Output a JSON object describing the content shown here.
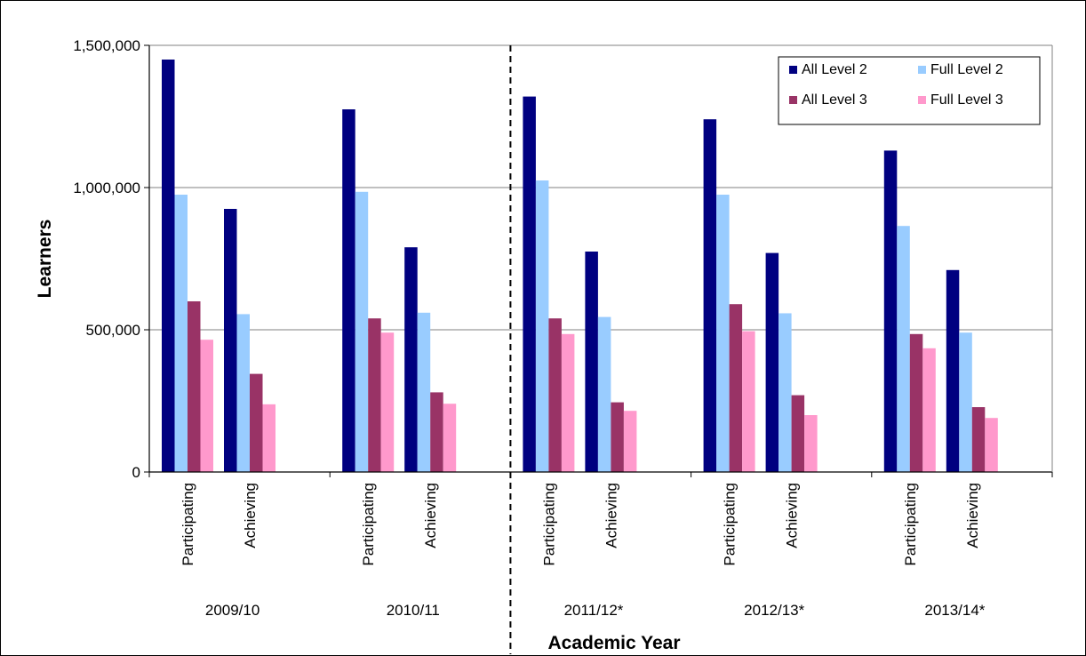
{
  "chart_data": {
    "type": "bar",
    "title": "",
    "xlabel": "Academic Year",
    "ylabel": "Learners",
    "ylim": [
      0,
      1500000
    ],
    "yticks": [
      0,
      500000,
      1000000,
      1500000
    ],
    "ytick_labels": [
      "0",
      "500,000",
      "1,000,000",
      "1,500,000"
    ],
    "grid": true,
    "legend_position": "top-right",
    "groups": [
      "2009/10",
      "2010/11",
      "2011/12*",
      "2012/13*",
      "2013/14*"
    ],
    "subcategories": [
      "Participating",
      "Achieving"
    ],
    "series": [
      {
        "name": "All Level 2",
        "color": "#000080",
        "values": [
          [
            1450000,
            925000
          ],
          [
            1275000,
            790000
          ],
          [
            1320000,
            775000
          ],
          [
            1240000,
            770000
          ],
          [
            1130000,
            710000
          ]
        ]
      },
      {
        "name": "Full Level 2",
        "color": "#99ccff",
        "values": [
          [
            975000,
            555000
          ],
          [
            985000,
            560000
          ],
          [
            1025000,
            545000
          ],
          [
            975000,
            558000
          ],
          [
            865000,
            490000
          ]
        ]
      },
      {
        "name": "All Level 3",
        "color": "#993366",
        "values": [
          [
            600000,
            345000
          ],
          [
            540000,
            280000
          ],
          [
            540000,
            245000
          ],
          [
            590000,
            270000
          ],
          [
            485000,
            228000
          ]
        ]
      },
      {
        "name": "Full Level 3",
        "color": "#ff99cc",
        "values": [
          [
            465000,
            238000
          ],
          [
            490000,
            240000
          ],
          [
            485000,
            215000
          ],
          [
            495000,
            200000
          ],
          [
            435000,
            190000
          ]
        ]
      }
    ],
    "divider_after_group": 1
  }
}
